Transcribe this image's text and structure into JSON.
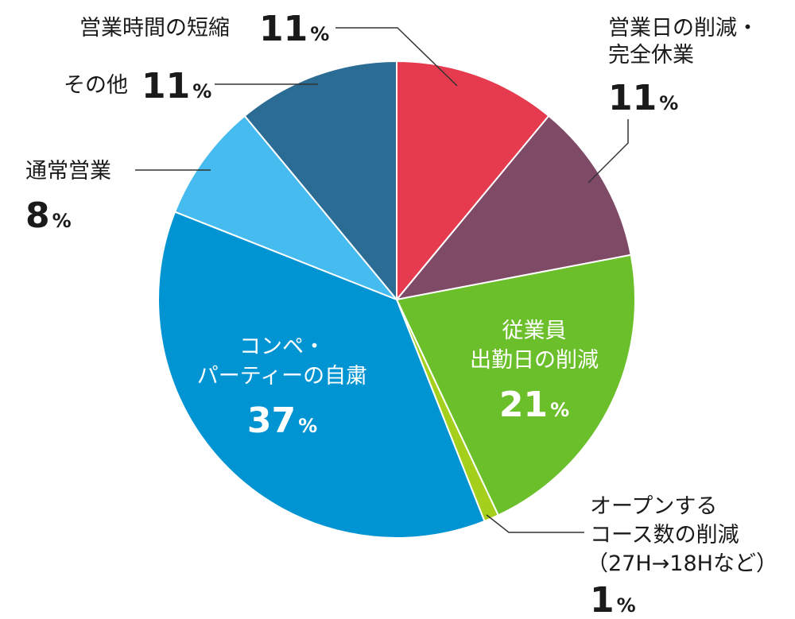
{
  "chart_data": {
    "type": "pie",
    "start": "12 o'clock",
    "direction": "clockwise",
    "slices": [
      {
        "label_lines": [
          "営業日の削減・",
          "完全休業"
        ],
        "value": 11,
        "color": "#e63b4f"
      },
      {
        "label_lines": [
          "従業員",
          "出勤日の削減"
        ],
        "value": 21,
        "color": "#79499a"
      },
      {
        "label_lines": [
          "オープンする",
          "コース数の削減",
          "（27H→18Hなど）"
        ],
        "value": 1,
        "color": "#a4cf1b"
      },
      {
        "label_lines": [
          "コンペ・",
          "パーティーの自粛"
        ],
        "value": 37,
        "color": "#0094d3"
      },
      {
        "label_lines": [
          "通常営業"
        ],
        "value": 8,
        "color": "#45bbef"
      },
      {
        "label_lines": [
          "その他"
        ],
        "value": 11,
        "color": "#2b6c95"
      },
      {
        "label_lines": [
          "営業時間の短縮"
        ],
        "value": 11,
        "color": "#e63b4f"
      }
    ],
    "unit_symbol": "%"
  }
}
